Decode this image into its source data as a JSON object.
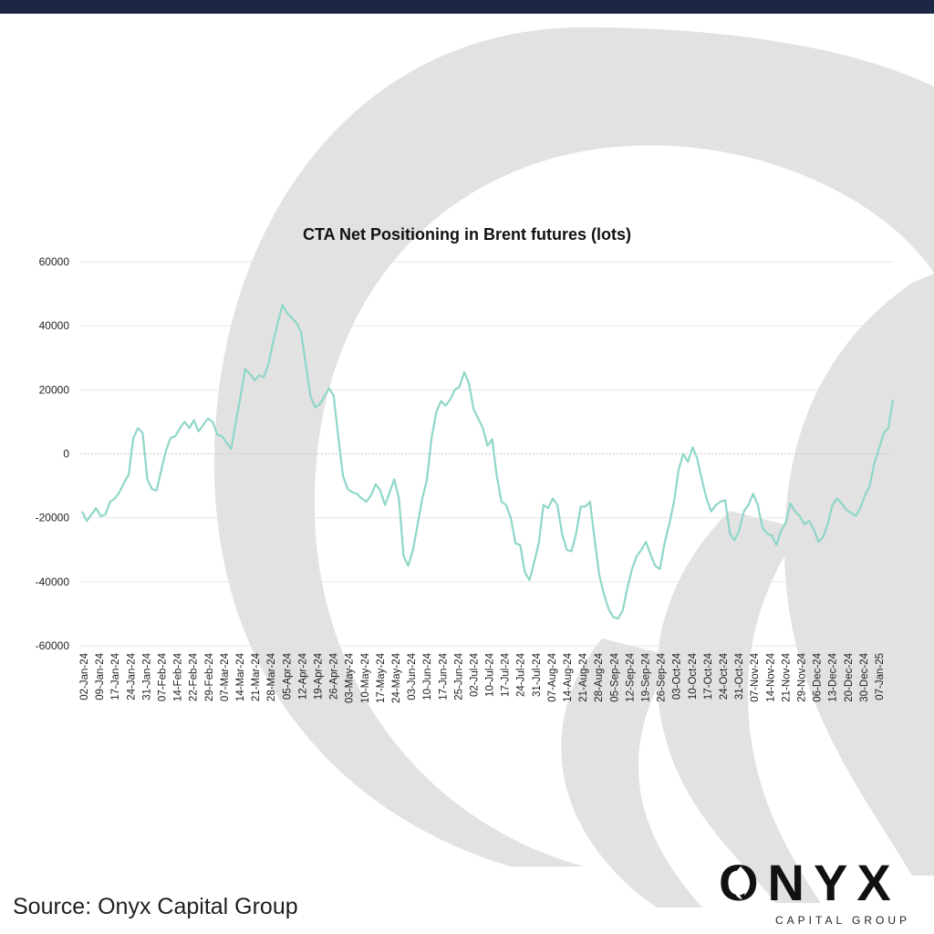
{
  "colors": {
    "top_bar": "#1c2744",
    "line": "#8fd6c9",
    "background_art": "#e2e2e2",
    "grid": "#e6e6e6",
    "zero_line": "#c8c8c8"
  },
  "source_text": "Source: Onyx Capital Group",
  "logo": {
    "word": "ONYX",
    "subtitle": "CAPITAL GROUP",
    "icon": "flame-icon"
  },
  "chart_data": {
    "type": "line",
    "title": "CTA Net Positioning in Brent futures (lots)",
    "xlabel": "",
    "ylabel": "",
    "ylim": [
      -60000,
      60000
    ],
    "yticks": [
      60000,
      40000,
      20000,
      0,
      -20000,
      -40000,
      -60000
    ],
    "grid": true,
    "x_tick_labels": [
      "02-Jan-24",
      "09-Jan-24",
      "17-Jan-24",
      "24-Jan-24",
      "31-Jan-24",
      "07-Feb-24",
      "14-Feb-24",
      "22-Feb-24",
      "29-Feb-24",
      "07-Mar-24",
      "14-Mar-24",
      "21-Mar-24",
      "28-Mar-24",
      "05-Apr-24",
      "12-Apr-24",
      "19-Apr-24",
      "26-Apr-24",
      "03-May-24",
      "10-May-24",
      "17-May-24",
      "24-May-24",
      "03-Jun-24",
      "10-Jun-24",
      "17-Jun-24",
      "25-Jun-24",
      "02-Jul-24",
      "10-Jul-24",
      "17-Jul-24",
      "24-Jul-24",
      "31-Jul-24",
      "07-Aug-24",
      "14-Aug-24",
      "21-Aug-24",
      "28-Aug-24",
      "05-Sep-24",
      "12-Sep-24",
      "19-Sep-24",
      "26-Sep-24",
      "03-Oct-24",
      "10-Oct-24",
      "17-Oct-24",
      "24-Oct-24",
      "31-Oct-24",
      "07-Nov-24",
      "14-Nov-24",
      "21-Nov-24",
      "29-Nov-24",
      "06-Dec-24",
      "13-Dec-24",
      "20-Dec-24",
      "30-Dec-24",
      "07-Jan-25"
    ],
    "series": [
      {
        "values": [
          -18000,
          -21000,
          -19000,
          -17000,
          -19500,
          -19000,
          -15000,
          -14000,
          -12000,
          -9000,
          -6500,
          5000,
          8000,
          6500,
          -8000,
          -11000,
          -11500,
          -5000,
          1000,
          5000,
          5500,
          8000,
          10000,
          8000,
          10500,
          7000,
          9000,
          11000,
          10000,
          6000,
          5500,
          3500,
          1500,
          10000,
          18000,
          26500,
          25000,
          23000,
          24500,
          24000,
          28000,
          35000,
          41000,
          46500,
          44000,
          42500,
          41000,
          38000,
          28000,
          18000,
          14500,
          15500,
          18000,
          20500,
          18000,
          5000,
          -7000,
          -11000,
          -12000,
          -12500,
          -14000,
          -15000,
          -13000,
          -9500,
          -11500,
          -16000,
          -12000,
          -8000,
          -14000,
          -32000,
          -35000,
          -30000,
          -22000,
          -14000,
          -8000,
          5000,
          13000,
          16500,
          15000,
          17000,
          20000,
          21000,
          25500,
          22000,
          14000,
          11000,
          8000,
          2500,
          4500,
          -7000,
          -15000,
          -16000,
          -20000,
          -28000,
          -28500,
          -37000,
          -39500,
          -34000,
          -28000,
          -16000,
          -17000,
          -14000,
          -16000,
          -25000,
          -30000,
          -30500,
          -25000,
          -16500,
          -16500,
          -15000,
          -27000,
          -38000,
          -44000,
          -48500,
          -51000,
          -51500,
          -49000,
          -42000,
          -36000,
          -32000,
          -30000,
          -27500,
          -31500,
          -35000,
          -36000,
          -28000,
          -22000,
          -15000,
          -5000,
          0,
          -2500,
          2000,
          -1500,
          -8000,
          -14000,
          -18000,
          -16000,
          -15000,
          -14500,
          -25000,
          -27000,
          -24000,
          -18000,
          -16000,
          -12500,
          -16000,
          -23000,
          -25000,
          -25500,
          -28500,
          -24000,
          -21500,
          -15500,
          -18000,
          -19500,
          -22000,
          -21000,
          -23500,
          -27500,
          -26000,
          -22000,
          -16000,
          -14000,
          -15500,
          -17500,
          -18500,
          -19500,
          -17000,
          -13000,
          -10000,
          -3000,
          1500,
          6500,
          8000,
          17000
        ]
      }
    ]
  }
}
